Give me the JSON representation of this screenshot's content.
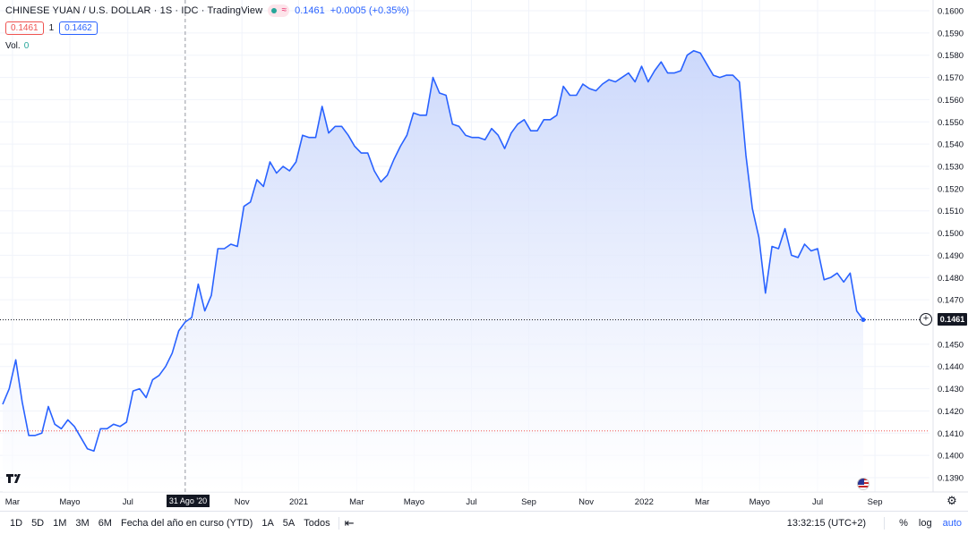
{
  "header": {
    "symbol": "CHINESE YUAN / U.S. DOLLAR · 1S · IDC · TradingView",
    "status_icon": "market-status-icon",
    "last_price": "0.1461",
    "change": "+0.0005 (+0.35%)"
  },
  "quote": {
    "bid": "0.1461",
    "spread": "1",
    "ask": "0.1462"
  },
  "volume": {
    "label": "Vol.",
    "value": "0"
  },
  "price_tag": "0.1461",
  "crosshair_date": "31 Ago '20",
  "bottom_bar": {
    "ranges": [
      "1D",
      "5D",
      "1M",
      "3M",
      "6M",
      "Fecha del año en curso (YTD)",
      "1A",
      "5A",
      "Todos"
    ],
    "clock": "13:32:15 (UTC+2)",
    "percent": "%",
    "log": "log",
    "auto": "auto"
  },
  "colors": {
    "line": "#2962ff",
    "area_top": "#c9d6fb",
    "area_bottom": "#ffffff",
    "grid": "#f0f3fa",
    "red_line": "#ef5350",
    "text": "#131722"
  },
  "chart_data": {
    "type": "area",
    "xlabel": "",
    "ylabel": "",
    "ylim": [
      0.1385,
      0.1605
    ],
    "yticks": [
      "0.1600",
      "0.1590",
      "0.1580",
      "0.1570",
      "0.1560",
      "0.1550",
      "0.1540",
      "0.1530",
      "0.1520",
      "0.1510",
      "0.1500",
      "0.1490",
      "0.1480",
      "0.1470",
      "0.1450",
      "0.1440",
      "0.1430",
      "0.1420",
      "0.1410",
      "0.1400",
      "0.1390"
    ],
    "xticks": [
      {
        "label": "Mar",
        "index": 1.5
      },
      {
        "label": "Mayo",
        "index": 10.3
      },
      {
        "label": "Jul",
        "index": 19.2
      },
      {
        "label": "Nov",
        "index": 36.7
      },
      {
        "label": "2021",
        "index": 45.4
      },
      {
        "label": "Mar",
        "index": 54.3
      },
      {
        "label": "Mayo",
        "index": 63.1
      },
      {
        "label": "Jul",
        "index": 71.9
      },
      {
        "label": "Sep",
        "index": 80.7
      },
      {
        "label": "Nov",
        "index": 89.5
      },
      {
        "label": "2022",
        "index": 98.4
      },
      {
        "label": "Mar",
        "index": 107.3
      },
      {
        "label": "Mayo",
        "index": 116.1
      },
      {
        "label": "Jul",
        "index": 125.0
      },
      {
        "label": "Sep",
        "index": 133.8
      }
    ],
    "crosshair_index": 28,
    "reference_line_value": 0.1411,
    "last_value": 0.1461,
    "series": [
      {
        "values": [
          0.1423,
          0.143,
          0.1443,
          0.1424,
          0.1409,
          0.1409,
          0.141,
          0.1422,
          0.1414,
          0.1412,
          0.1416,
          0.1413,
          0.1408,
          0.1403,
          0.1402,
          0.1412,
          0.1412,
          0.1414,
          0.1413,
          0.1415,
          0.1429,
          0.143,
          0.1426,
          0.1434,
          0.1436,
          0.144,
          0.1446,
          0.1456,
          0.146,
          0.1462,
          0.1477,
          0.1465,
          0.1472,
          0.1493,
          0.1493,
          0.1495,
          0.1494,
          0.1512,
          0.1514,
          0.1524,
          0.1521,
          0.1532,
          0.1527,
          0.153,
          0.1528,
          0.1532,
          0.1544,
          0.1543,
          0.1543,
          0.1557,
          0.1545,
          0.1548,
          0.1548,
          0.1544,
          0.1539,
          0.1536,
          0.1536,
          0.1528,
          0.1523,
          0.1526,
          0.1533,
          0.1539,
          0.1544,
          0.1554,
          0.1553,
          0.1553,
          0.157,
          0.1563,
          0.1562,
          0.1549,
          0.1548,
          0.1544,
          0.1543,
          0.1543,
          0.1542,
          0.1547,
          0.1544,
          0.1538,
          0.1545,
          0.1549,
          0.1551,
          0.1546,
          0.1546,
          0.1551,
          0.1551,
          0.1553,
          0.1566,
          0.1562,
          0.1562,
          0.1567,
          0.1565,
          0.1564,
          0.1567,
          0.1569,
          0.1568,
          0.157,
          0.1572,
          0.1568,
          0.1575,
          0.1568,
          0.1573,
          0.1577,
          0.1572,
          0.1572,
          0.1573,
          0.158,
          0.1582,
          0.1581,
          0.1576,
          0.1571,
          0.157,
          0.1571,
          0.1571,
          0.1568,
          0.1535,
          0.1511,
          0.1498,
          0.1473,
          0.1494,
          0.1493,
          0.1502,
          0.149,
          0.1489,
          0.1495,
          0.1492,
          0.1493,
          0.1479,
          0.148,
          0.1482,
          0.1478,
          0.1482,
          0.1465,
          0.1461
        ]
      }
    ]
  }
}
